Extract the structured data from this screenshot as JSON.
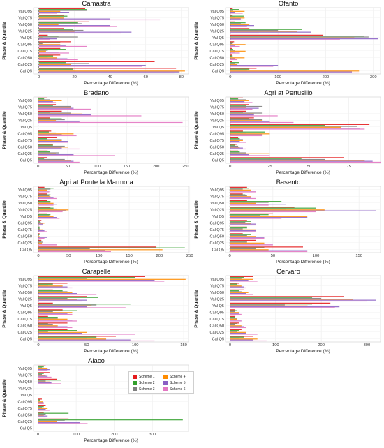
{
  "figure": {
    "ylabel": "Phase & Quantile",
    "xlabel": "Percentage Difference (%)",
    "categories": [
      "Val Q95",
      "Val Q75",
      "Val Q50",
      "Val Q25",
      "Val Q5",
      "Cal Q95",
      "Cal Q75",
      "Cal Q50",
      "Cal Q25",
      "Cal Q5"
    ],
    "scheme_names": [
      "Scheme 1",
      "Scheme 2",
      "Scheme 3",
      "Scheme 4",
      "Scheme 5",
      "Scheme 6"
    ],
    "scheme_colors": [
      "#e41a1c",
      "#33a02c",
      "#7f7f7f",
      "#ff8c00",
      "#8a5fc4",
      "#e377c2"
    ]
  },
  "chart_data": [
    {
      "type": "bar",
      "title": "Camastra",
      "xlim": [
        -3,
        84
      ],
      "xticks": [
        0,
        20,
        40,
        60,
        80
      ],
      "series": [
        {
          "name": "Scheme 1",
          "values": [
            26,
            14,
            28,
            14,
            5,
            18,
            12,
            12,
            65,
            77
          ]
        },
        {
          "name": "Scheme 2",
          "values": [
            27,
            16,
            22,
            19,
            11,
            12,
            15,
            8,
            15,
            19
          ]
        },
        {
          "name": "Scheme 3",
          "values": [
            27,
            12,
            24,
            25,
            22,
            2,
            5,
            5,
            28,
            20
          ]
        },
        {
          "name": "Scheme 4",
          "values": [
            12,
            14,
            11,
            20,
            2,
            12,
            4,
            10,
            18,
            82
          ]
        },
        {
          "name": "Scheme 5",
          "values": [
            17,
            40,
            40,
            52,
            10,
            15,
            11,
            16,
            60,
            79
          ]
        },
        {
          "name": "Scheme 6",
          "values": [
            10,
            68,
            44,
            46,
            6,
            27,
            17,
            22,
            58,
            76
          ]
        }
      ]
    },
    {
      "type": "bar",
      "title": "Ofanto",
      "xlim": [
        -10,
        315
      ],
      "xticks": [
        0,
        100,
        200,
        300
      ],
      "series": [
        {
          "name": "Scheme 1",
          "values": [
            5,
            5,
            10,
            40,
            195,
            8,
            4,
            4,
            4,
            55
          ]
        },
        {
          "name": "Scheme 2",
          "values": [
            18,
            28,
            32,
            150,
            280,
            6,
            6,
            5,
            18,
            40
          ]
        },
        {
          "name": "Scheme 3",
          "values": [
            6,
            10,
            22,
            100,
            290,
            5,
            10,
            4,
            10,
            35
          ]
        },
        {
          "name": "Scheme 4",
          "values": [
            30,
            30,
            40,
            140,
            260,
            32,
            32,
            30,
            15,
            270
          ]
        },
        {
          "name": "Scheme 5",
          "values": [
            10,
            22,
            50,
            170,
            310,
            10,
            10,
            10,
            100,
            255
          ]
        },
        {
          "name": "Scheme 6",
          "values": [
            26,
            26,
            35,
            60,
            230,
            20,
            20,
            15,
            90,
            270
          ]
        }
      ]
    },
    {
      "type": "bar",
      "title": "Bradano",
      "xlim": [
        -8,
        255
      ],
      "xticks": [
        0,
        50,
        100,
        150,
        200,
        250
      ],
      "series": [
        {
          "name": "Scheme 1",
          "values": [
            15,
            30,
            40,
            20,
            0,
            22,
            32,
            25,
            16,
            15
          ]
        },
        {
          "name": "Scheme 2",
          "values": [
            10,
            25,
            20,
            40,
            0,
            18,
            15,
            25,
            20,
            10
          ]
        },
        {
          "name": "Scheme 3",
          "values": [
            20,
            55,
            55,
            45,
            0,
            30,
            40,
            45,
            35,
            45
          ]
        },
        {
          "name": "Scheme 4",
          "values": [
            40,
            55,
            75,
            30,
            0,
            60,
            40,
            50,
            30,
            55
          ]
        },
        {
          "name": "Scheme 5",
          "values": [
            25,
            60,
            90,
            70,
            0,
            40,
            50,
            40,
            60,
            60
          ]
        },
        {
          "name": "Scheme 6",
          "values": [
            30,
            90,
            175,
            245,
            0,
            65,
            50,
            70,
            130,
            70
          ]
        }
      ]
    },
    {
      "type": "bar",
      "title": "Agri at Pertusillo",
      "xlim": [
        -3,
        95
      ],
      "xticks": [
        0,
        25,
        50,
        75
      ],
      "series": [
        {
          "name": "Scheme 1",
          "values": [
            8,
            12,
            10,
            15,
            88,
            8,
            5,
            4,
            5,
            72
          ]
        },
        {
          "name": "Scheme 2",
          "values": [
            5,
            10,
            8,
            12,
            60,
            22,
            6,
            3,
            6,
            45
          ]
        },
        {
          "name": "Scheme 3",
          "values": [
            10,
            20,
            20,
            20,
            80,
            10,
            8,
            5,
            10,
            60
          ]
        },
        {
          "name": "Scheme 4",
          "values": [
            12,
            10,
            15,
            20,
            70,
            25,
            8,
            6,
            25,
            85
          ]
        },
        {
          "name": "Scheme 5",
          "values": [
            9,
            18,
            15,
            25,
            82,
            20,
            6,
            8,
            12,
            90
          ]
        },
        {
          "name": "Scheme 6",
          "values": [
            14,
            14,
            30,
            40,
            85,
            20,
            10,
            10,
            25,
            95
          ]
        }
      ]
    },
    {
      "type": "bar",
      "title": "Agri at Ponte la Marmora",
      "xlim": [
        -8,
        248
      ],
      "xticks": [
        0,
        50,
        100,
        150,
        200,
        250
      ],
      "series": [
        {
          "name": "Scheme 1",
          "values": [
            10,
            15,
            15,
            20,
            15,
            5,
            3,
            2,
            5,
            195
          ]
        },
        {
          "name": "Scheme 2",
          "values": [
            25,
            20,
            20,
            25,
            20,
            3,
            2,
            2,
            5,
            242
          ]
        },
        {
          "name": "Scheme 3",
          "values": [
            20,
            18,
            20,
            30,
            18,
            4,
            3,
            1,
            8,
            85
          ]
        },
        {
          "name": "Scheme 4",
          "values": [
            15,
            20,
            25,
            50,
            25,
            10,
            8,
            2,
            6,
            205
          ]
        },
        {
          "name": "Scheme 5",
          "values": [
            20,
            25,
            30,
            45,
            30,
            8,
            10,
            15,
            30,
            110
          ]
        },
        {
          "name": "Scheme 6",
          "values": [
            18,
            30,
            25,
            40,
            35,
            8,
            15,
            10,
            30,
            120
          ]
        }
      ]
    },
    {
      "type": "bar",
      "title": "Basento",
      "xlim": [
        -5,
        175
      ],
      "xticks": [
        0,
        50,
        100,
        150
      ],
      "series": [
        {
          "name": "Scheme 1",
          "values": [
            20,
            15,
            20,
            75,
            50,
            20,
            20,
            15,
            30,
            85
          ]
        },
        {
          "name": "Scheme 2",
          "values": [
            22,
            18,
            60,
            100,
            45,
            25,
            20,
            25,
            20,
            40
          ]
        },
        {
          "name": "Scheme 3",
          "values": [
            15,
            20,
            45,
            65,
            35,
            18,
            15,
            20,
            20,
            30
          ]
        },
        {
          "name": "Scheme 4",
          "values": [
            25,
            25,
            30,
            110,
            90,
            25,
            30,
            30,
            40,
            45
          ]
        },
        {
          "name": "Scheme 5",
          "values": [
            30,
            25,
            65,
            170,
            90,
            30,
            30,
            40,
            50,
            90
          ]
        },
        {
          "name": "Scheme 6",
          "values": [
            30,
            30,
            45,
            100,
            60,
            30,
            30,
            40,
            50,
            90
          ]
        }
      ]
    },
    {
      "type": "bar",
      "title": "Carapelle",
      "xlim": [
        -5,
        155
      ],
      "xticks": [
        0,
        50,
        100,
        150
      ],
      "series": [
        {
          "name": "Scheme 1",
          "values": [
            110,
            30,
            15,
            50,
            15,
            25,
            10,
            30,
            30,
            80
          ]
        },
        {
          "name": "Scheme 2",
          "values": [
            100,
            15,
            25,
            62,
            95,
            40,
            20,
            10,
            40,
            60
          ]
        },
        {
          "name": "Scheme 3",
          "values": [
            50,
            10,
            30,
            30,
            60,
            15,
            20,
            15,
            10,
            50
          ]
        },
        {
          "name": "Scheme 4",
          "values": [
            152,
            25,
            35,
            40,
            55,
            35,
            30,
            20,
            50,
            70
          ]
        },
        {
          "name": "Scheme 5",
          "values": [
            120,
            30,
            40,
            50,
            50,
            30,
            35,
            30,
            45,
            95
          ]
        },
        {
          "name": "Scheme 6",
          "values": [
            130,
            35,
            60,
            45,
            90,
            35,
            40,
            35,
            100,
            120
          ]
        }
      ]
    },
    {
      "type": "bar",
      "title": "Cervaro",
      "xlim": [
        -10,
        330
      ],
      "xticks": [
        0,
        100,
        200,
        300
      ],
      "series": [
        {
          "name": "Scheme 1",
          "values": [
            50,
            20,
            30,
            250,
            220,
            10,
            10,
            20,
            25,
            50
          ]
        },
        {
          "name": "Scheme 2",
          "values": [
            30,
            15,
            20,
            180,
            180,
            15,
            10,
            15,
            20,
            30
          ]
        },
        {
          "name": "Scheme 3",
          "values": [
            25,
            20,
            25,
            200,
            120,
            10,
            15,
            10,
            15,
            20
          ]
        },
        {
          "name": "Scheme 4",
          "values": [
            50,
            25,
            40,
            270,
            170,
            20,
            15,
            25,
            35,
            60
          ]
        },
        {
          "name": "Scheme 5",
          "values": [
            40,
            30,
            35,
            320,
            240,
            20,
            25,
            30,
            35,
            50
          ]
        },
        {
          "name": "Scheme 6",
          "values": [
            60,
            35,
            50,
            300,
            230,
            25,
            25,
            35,
            60,
            80
          ]
        }
      ]
    },
    {
      "type": "bar",
      "title": "Alaco",
      "xlim": [
        -12,
        395
      ],
      "xticks": [
        0,
        100,
        200,
        300
      ],
      "series": [
        {
          "name": "Scheme 1",
          "values": [
            20,
            30,
            50,
            0,
            0,
            10,
            20,
            15,
            80,
            0
          ]
        },
        {
          "name": "Scheme 2",
          "values": [
            15,
            15,
            60,
            0,
            0,
            5,
            15,
            80,
            380,
            0
          ]
        },
        {
          "name": "Scheme 3",
          "values": [
            10,
            10,
            20,
            0,
            0,
            5,
            10,
            20,
            70,
            0
          ]
        },
        {
          "name": "Scheme 4",
          "values": [
            25,
            20,
            30,
            0,
            0,
            12,
            25,
            15,
            50,
            0
          ]
        },
        {
          "name": "Scheme 5",
          "values": [
            30,
            25,
            35,
            0,
            0,
            15,
            20,
            25,
            110,
            0
          ]
        },
        {
          "name": "Scheme 6",
          "values": [
            25,
            35,
            60,
            0,
            0,
            15,
            30,
            20,
            130,
            0
          ]
        }
      ]
    }
  ]
}
